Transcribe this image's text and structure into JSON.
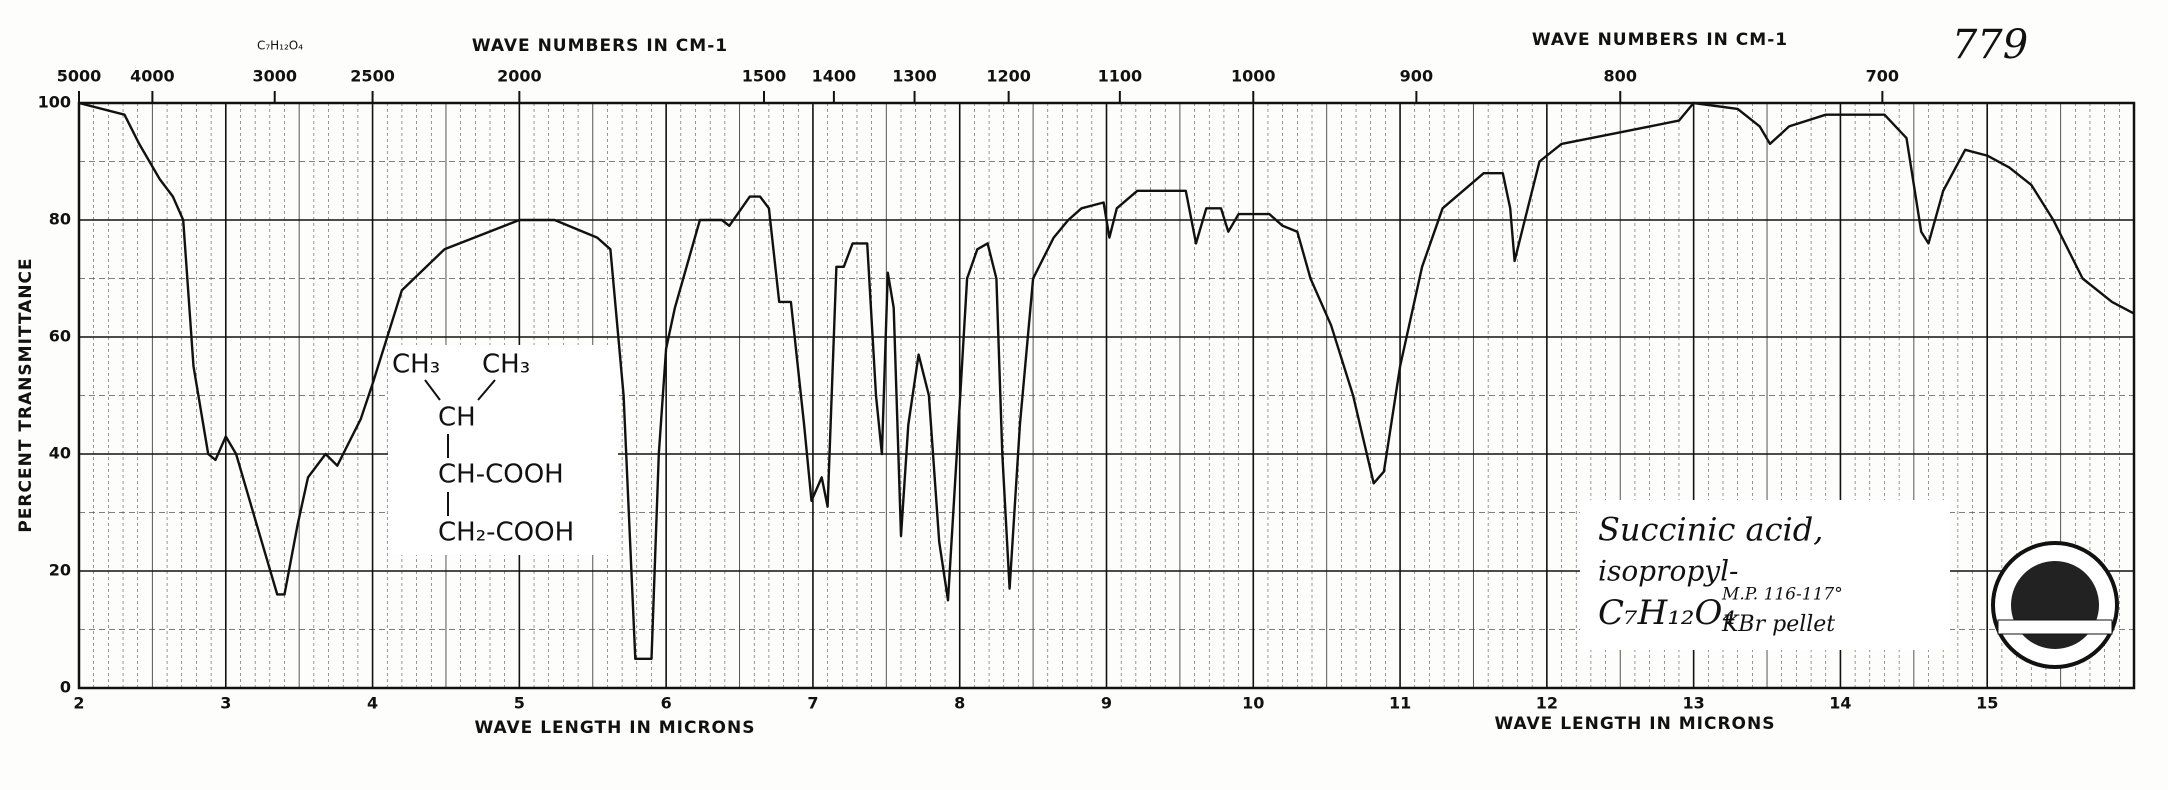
{
  "chart_data": {
    "type": "line",
    "xlabel": [
      "WAVE LENGTH IN MICRONS",
      "WAVE LENGTH IN MICRONS"
    ],
    "x2label": [
      "WAVE NUMBERS IN CM-1",
      "WAVE NUMBERS IN CM-1"
    ],
    "ylabel": "PERCENT TRANSMITTANCE",
    "page_number": "779",
    "formula_top": "C₇H₁₂O₄",
    "structure": [
      "CH₃",
      "CH₃",
      "CH",
      "CH-COOH",
      "CH₂-COOH"
    ],
    "sample": [
      "Succinic acid,",
      "isopropyl-",
      "C₇H₁₂O₄",
      "M.P. 116-117°",
      "KBr pellet"
    ],
    "xlim": [
      2,
      16
    ],
    "xticks": [
      2,
      3,
      4,
      5,
      6,
      7,
      8,
      9,
      10,
      11,
      12,
      13,
      14,
      15
    ],
    "x2lim": [
      5000,
      625
    ],
    "x2scale": "reciprocal",
    "x2ticks": [
      5000,
      4000,
      3000,
      2500,
      2000,
      1500,
      1400,
      1300,
      1200,
      1100,
      1000,
      900,
      800,
      700
    ],
    "ylim": [
      0,
      100
    ],
    "yticks": [
      0,
      20,
      40,
      60,
      80,
      100
    ],
    "grid": true,
    "color": "#111111",
    "x": [
      2.0,
      2.31,
      2.41,
      2.55,
      2.64,
      2.71,
      2.78,
      2.88,
      2.93,
      3.0,
      3.07,
      3.21,
      3.35,
      3.4,
      3.49,
      3.56,
      3.68,
      3.76,
      3.82,
      3.92,
      4.0,
      4.2,
      4.49,
      5.0,
      5.24,
      5.53,
      5.62,
      5.71,
      5.79,
      5.9,
      5.95,
      6.0,
      6.06,
      6.23,
      6.38,
      6.43,
      6.57,
      6.64,
      6.7,
      6.77,
      6.85,
      6.94,
      6.99,
      7.06,
      7.1,
      7.16,
      7.21,
      7.27,
      7.37,
      7.43,
      7.47,
      7.51,
      7.55,
      7.6,
      7.65,
      7.72,
      7.79,
      7.86,
      7.92,
      7.98,
      8.05,
      8.12,
      8.19,
      8.25,
      8.29,
      8.34,
      8.41,
      8.5,
      8.64,
      8.74,
      8.83,
      8.98,
      9.02,
      9.07,
      9.21,
      9.54,
      9.61,
      9.68,
      9.78,
      9.83,
      9.9,
      10.11,
      10.2,
      10.3,
      10.39,
      10.53,
      10.68,
      10.82,
      10.89,
      11.0,
      11.15,
      11.29,
      11.57,
      11.7,
      11.75,
      11.78,
      11.85,
      11.95,
      12.1,
      12.5,
      12.9,
      13.0,
      13.3,
      13.45,
      13.52,
      13.65,
      13.9,
      14.3,
      14.45,
      14.55,
      14.6,
      14.7,
      14.85,
      15.0,
      15.15,
      15.3,
      15.45,
      15.65,
      15.85,
      16.0
    ],
    "values": [
      100,
      98,
      93,
      87,
      84,
      80,
      55,
      40,
      39,
      43,
      40,
      28,
      16,
      16,
      28,
      36,
      40,
      38,
      41,
      46,
      52,
      68,
      75,
      80,
      80,
      77,
      75,
      50,
      5,
      5,
      40,
      58,
      65,
      80,
      80,
      79,
      84,
      84,
      82,
      66,
      66,
      45,
      32,
      36,
      31,
      72,
      72,
      76,
      76,
      50,
      40,
      71,
      65,
      26,
      45,
      57,
      50,
      25,
      15,
      40,
      70,
      75,
      76,
      70,
      40,
      17,
      45,
      70,
      77,
      80,
      82,
      83,
      77,
      82,
      85,
      85,
      76,
      82,
      82,
      78,
      81,
      81,
      79,
      78,
      70,
      62,
      50,
      35,
      37,
      55,
      72,
      82,
      88,
      88,
      82,
      73,
      80,
      90,
      93,
      95,
      97,
      100,
      99,
      96,
      93,
      96,
      98,
      98,
      94,
      78,
      76,
      85,
      92,
      91,
      89,
      86,
      80,
      70,
      66,
      64
    ]
  }
}
